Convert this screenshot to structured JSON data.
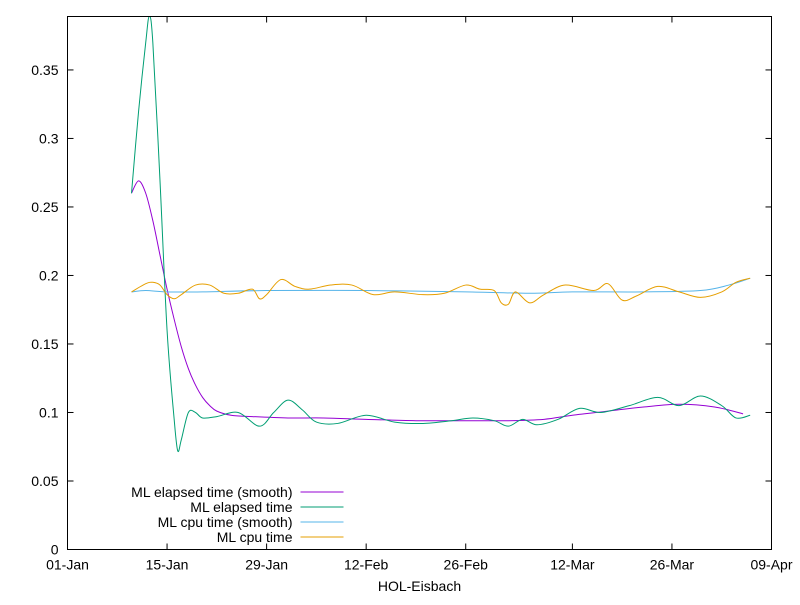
{
  "chart_data": {
    "type": "line",
    "title": "",
    "xlabel": "HOL-Eisbach",
    "ylabel": "",
    "x_type": "date",
    "xlim": [
      "2024-01-01",
      "2024-04-09"
    ],
    "ylim": [
      0,
      0.389
    ],
    "x_ticks": [
      {
        "date": "2024-01-01",
        "label": "01-Jan"
      },
      {
        "date": "2024-01-15",
        "label": "15-Jan"
      },
      {
        "date": "2024-01-29",
        "label": "29-Jan"
      },
      {
        "date": "2024-02-12",
        "label": "12-Feb"
      },
      {
        "date": "2024-02-26",
        "label": "26-Feb"
      },
      {
        "date": "2024-03-12",
        "label": "12-Mar"
      },
      {
        "date": "2024-03-26",
        "label": "26-Mar"
      },
      {
        "date": "2024-04-09",
        "label": "09-Apr"
      }
    ],
    "y_ticks": [
      {
        "value": 0,
        "label": "0"
      },
      {
        "value": 0.05,
        "label": "0.05"
      },
      {
        "value": 0.1,
        "label": "0.1"
      },
      {
        "value": 0.15,
        "label": "0.15"
      },
      {
        "value": 0.2,
        "label": "0.2"
      },
      {
        "value": 0.25,
        "label": "0.25"
      },
      {
        "value": 0.3,
        "label": "0.3"
      },
      {
        "value": 0.35,
        "label": "0.35"
      }
    ],
    "grid": false,
    "legend_position": "bottom-left",
    "series": [
      {
        "name": "ML elapsed time (smooth)",
        "color": "#9400d3",
        "points": [
          [
            "2024-01-10",
            0.26
          ],
          [
            "2024-01-11",
            0.269
          ],
          [
            "2024-01-12",
            0.26
          ],
          [
            "2024-01-13",
            0.24
          ],
          [
            "2024-01-14",
            0.215
          ],
          [
            "2024-01-15",
            0.19
          ],
          [
            "2024-01-16",
            0.168
          ],
          [
            "2024-01-17",
            0.148
          ],
          [
            "2024-01-18",
            0.132
          ],
          [
            "2024-01-19",
            0.12
          ],
          [
            "2024-01-20",
            0.111
          ],
          [
            "2024-01-21",
            0.105
          ],
          [
            "2024-01-22",
            0.101
          ],
          [
            "2024-01-24",
            0.098
          ],
          [
            "2024-01-27",
            0.097
          ],
          [
            "2024-02-01",
            0.096
          ],
          [
            "2024-02-06",
            0.096
          ],
          [
            "2024-02-12",
            0.095
          ],
          [
            "2024-02-19",
            0.094
          ],
          [
            "2024-02-26",
            0.094
          ],
          [
            "2024-03-03",
            0.094
          ],
          [
            "2024-03-08",
            0.095
          ],
          [
            "2024-03-12",
            0.098
          ],
          [
            "2024-03-17",
            0.101
          ],
          [
            "2024-03-22",
            0.104
          ],
          [
            "2024-03-27",
            0.106
          ],
          [
            "2024-04-01",
            0.104
          ],
          [
            "2024-04-05",
            0.099
          ]
        ]
      },
      {
        "name": "ML elapsed time",
        "color": "#009e73",
        "points": [
          [
            "2024-01-10",
            0.26
          ],
          [
            "2024-01-11",
            0.32
          ],
          [
            "2024-01-12",
            0.37
          ],
          [
            "2024-01-12.5",
            0.389
          ],
          [
            "2024-01-13",
            0.37
          ],
          [
            "2024-01-14",
            0.27
          ],
          [
            "2024-01-15",
            0.16
          ],
          [
            "2024-01-16",
            0.095
          ],
          [
            "2024-01-16.5",
            0.072
          ],
          [
            "2024-01-17",
            0.08
          ],
          [
            "2024-01-18",
            0.1
          ],
          [
            "2024-01-19",
            0.1
          ],
          [
            "2024-01-20",
            0.096
          ],
          [
            "2024-01-22",
            0.097
          ],
          [
            "2024-01-25",
            0.1
          ],
          [
            "2024-01-28",
            0.09
          ],
          [
            "2024-01-30",
            0.1
          ],
          [
            "2024-02-01",
            0.109
          ],
          [
            "2024-02-03",
            0.102
          ],
          [
            "2024-02-05",
            0.093
          ],
          [
            "2024-02-08",
            0.092
          ],
          [
            "2024-02-12",
            0.098
          ],
          [
            "2024-02-16",
            0.093
          ],
          [
            "2024-02-20",
            0.092
          ],
          [
            "2024-02-24",
            0.094
          ],
          [
            "2024-02-27",
            0.096
          ],
          [
            "2024-03-01",
            0.094
          ],
          [
            "2024-03-03",
            0.09
          ],
          [
            "2024-03-05",
            0.095
          ],
          [
            "2024-03-07",
            0.091
          ],
          [
            "2024-03-10",
            0.095
          ],
          [
            "2024-03-13",
            0.103
          ],
          [
            "2024-03-16",
            0.1
          ],
          [
            "2024-03-20",
            0.105
          ],
          [
            "2024-03-24",
            0.111
          ],
          [
            "2024-03-27",
            0.105
          ],
          [
            "2024-03-30",
            0.112
          ],
          [
            "2024-04-02",
            0.105
          ],
          [
            "2024-04-04",
            0.096
          ],
          [
            "2024-04-06",
            0.098
          ]
        ]
      },
      {
        "name": "ML cpu time (smooth)",
        "color": "#56b4e9",
        "points": [
          [
            "2024-01-10",
            0.188
          ],
          [
            "2024-01-12",
            0.189
          ],
          [
            "2024-01-15",
            0.188
          ],
          [
            "2024-01-20",
            0.188
          ],
          [
            "2024-01-29",
            0.189
          ],
          [
            "2024-02-12",
            0.189
          ],
          [
            "2024-02-26",
            0.188
          ],
          [
            "2024-03-06",
            0.187
          ],
          [
            "2024-03-12",
            0.188
          ],
          [
            "2024-03-22",
            0.188
          ],
          [
            "2024-03-30",
            0.189
          ],
          [
            "2024-04-03",
            0.193
          ],
          [
            "2024-04-06",
            0.198
          ]
        ]
      },
      {
        "name": "ML cpu time",
        "color": "#e69f00",
        "points": [
          [
            "2024-01-10",
            0.188
          ],
          [
            "2024-01-12",
            0.194
          ],
          [
            "2024-01-13",
            0.195
          ],
          [
            "2024-01-14",
            0.193
          ],
          [
            "2024-01-15",
            0.186
          ],
          [
            "2024-01-16",
            0.183
          ],
          [
            "2024-01-17",
            0.186
          ],
          [
            "2024-01-19",
            0.193
          ],
          [
            "2024-01-21",
            0.193
          ],
          [
            "2024-01-23",
            0.187
          ],
          [
            "2024-01-25",
            0.187
          ],
          [
            "2024-01-27",
            0.19
          ],
          [
            "2024-01-28",
            0.183
          ],
          [
            "2024-01-29",
            0.186
          ],
          [
            "2024-01-31",
            0.197
          ],
          [
            "2024-02-02",
            0.192
          ],
          [
            "2024-02-04",
            0.19
          ],
          [
            "2024-02-07",
            0.193
          ],
          [
            "2024-02-10",
            0.193
          ],
          [
            "2024-02-13",
            0.186
          ],
          [
            "2024-02-16",
            0.188
          ],
          [
            "2024-02-20",
            0.186
          ],
          [
            "2024-02-23",
            0.187
          ],
          [
            "2024-02-26",
            0.193
          ],
          [
            "2024-02-28",
            0.19
          ],
          [
            "2024-03-01",
            0.189
          ],
          [
            "2024-03-02",
            0.18
          ],
          [
            "2024-03-03",
            0.179
          ],
          [
            "2024-03-04",
            0.188
          ],
          [
            "2024-03-06",
            0.18
          ],
          [
            "2024-03-08",
            0.186
          ],
          [
            "2024-03-11",
            0.193
          ],
          [
            "2024-03-15",
            0.189
          ],
          [
            "2024-03-17",
            0.194
          ],
          [
            "2024-03-19",
            0.182
          ],
          [
            "2024-03-21",
            0.185
          ],
          [
            "2024-03-24",
            0.192
          ],
          [
            "2024-03-27",
            0.188
          ],
          [
            "2024-03-30",
            0.184
          ],
          [
            "2024-04-02",
            0.188
          ],
          [
            "2024-04-04",
            0.195
          ],
          [
            "2024-04-06",
            0.198
          ]
        ]
      }
    ]
  }
}
